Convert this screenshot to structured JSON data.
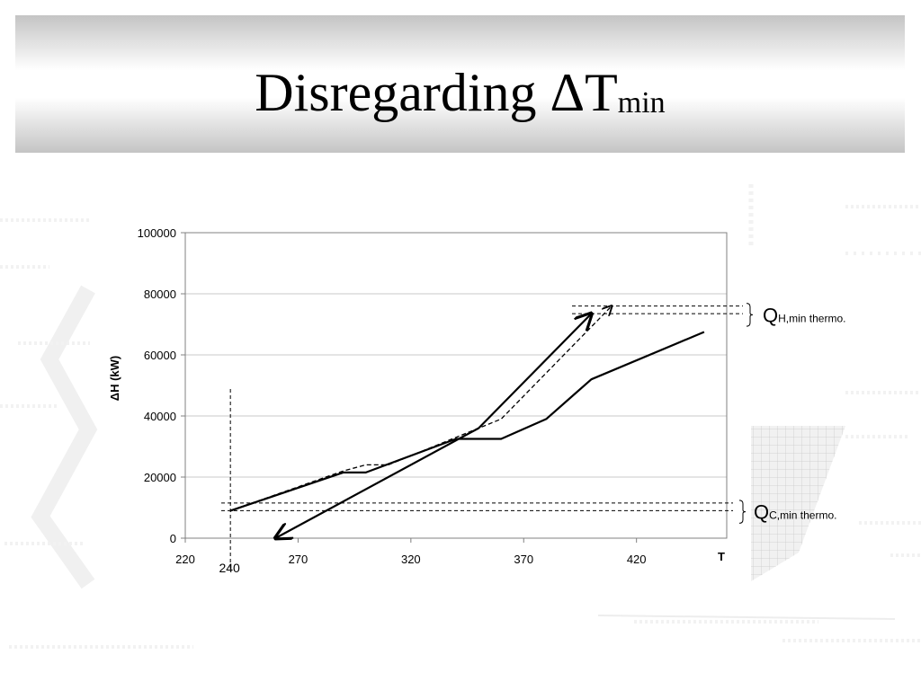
{
  "slide": {
    "title_main": "Disregarding ΔT",
    "title_sub": "min"
  },
  "chart_data": {
    "type": "line",
    "title": "",
    "xlabel": "T",
    "ylabel": "ΔH (kW)",
    "xlim": [
      220,
      460
    ],
    "ylim": [
      0,
      100000
    ],
    "x_ticks": [
      "220",
      "270",
      "320",
      "370",
      "420"
    ],
    "x_tick_values": [
      220,
      270,
      320,
      370,
      420
    ],
    "y_ticks": [
      "0",
      "20000",
      "40000",
      "60000",
      "80000",
      "100000"
    ],
    "y_tick_values": [
      0,
      20000,
      40000,
      60000,
      80000,
      100000
    ],
    "grid": "horizontal",
    "series": [
      {
        "style": "solid",
        "points": [
          [
            240,
            9000
          ],
          [
            290,
            21500
          ],
          [
            300,
            21500
          ],
          [
            340,
            32500
          ],
          [
            360,
            32500
          ],
          [
            380,
            39000
          ],
          [
            400,
            52000
          ],
          [
            450,
            67500
          ]
        ]
      },
      {
        "style": "solid-arrow",
        "points": [
          [
            260,
            0
          ],
          [
            350,
            36000
          ],
          [
            400,
            73500
          ]
        ]
      },
      {
        "style": "dashed",
        "points": [
          [
            240,
            9000
          ],
          [
            290,
            22000
          ],
          [
            300,
            24000
          ],
          [
            310,
            24000
          ],
          [
            340,
            33000
          ],
          [
            360,
            39000
          ],
          [
            409,
            76000
          ]
        ]
      }
    ],
    "reference_lines": [
      {
        "axis": "x",
        "value": 240,
        "label": "240"
      },
      {
        "axis": "y",
        "value": 9000
      },
      {
        "axis": "y",
        "value": 11500
      },
      {
        "axis": "y",
        "value": 73500
      },
      {
        "axis": "y",
        "value": 76000
      }
    ],
    "annotations": [
      {
        "main": "Q",
        "sub": "H,min thermo."
      },
      {
        "main": "Q",
        "sub": "C,min thermo."
      }
    ]
  }
}
